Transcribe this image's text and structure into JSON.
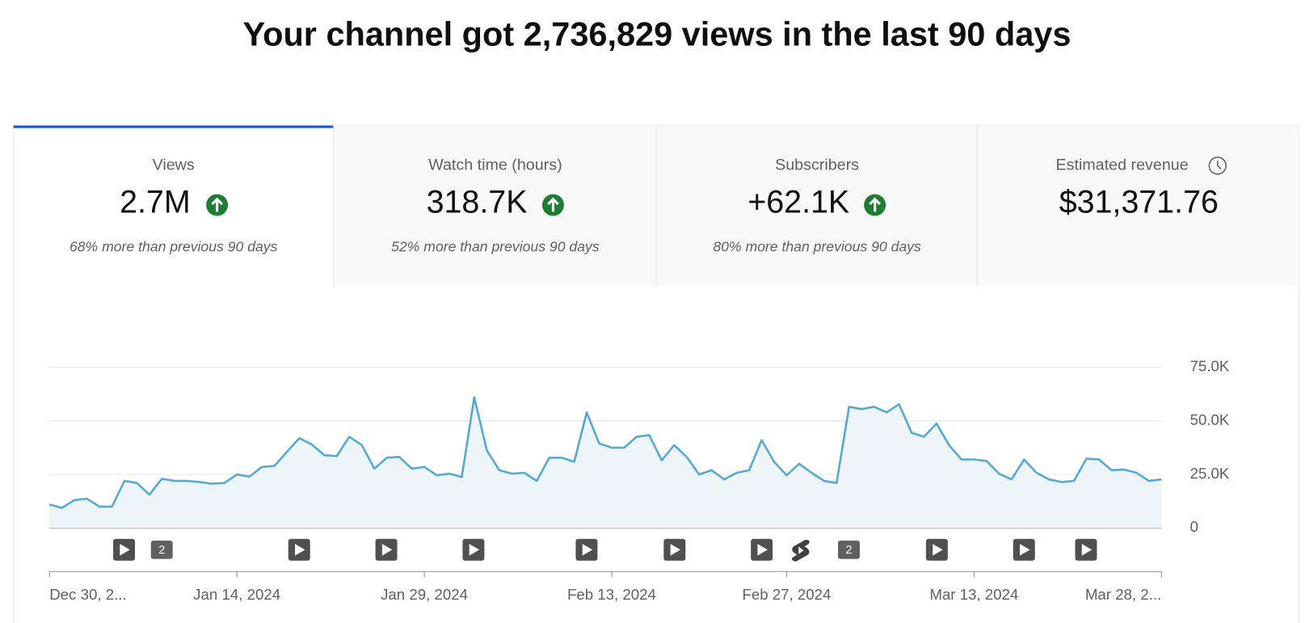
{
  "header": {
    "title": "Your channel got 2,736,829 views in the last 90 days"
  },
  "tabs": [
    {
      "label": "Views",
      "value": "2.7M",
      "change": "68% more than previous 90 days"
    },
    {
      "label": "Watch time (hours)",
      "value": "318.7K",
      "change": "52% more than previous 90 days"
    },
    {
      "label": "Subscribers",
      "value": "+62.1K",
      "change": "80% more than previous 90 days"
    },
    {
      "label": "Estimated revenue",
      "value": "$31,371.76"
    }
  ],
  "chart_data": {
    "type": "line",
    "color": "#55a9d4",
    "fill": "#eef5f9",
    "grid": true,
    "values": [
      11000,
      9400,
      13000,
      13700,
      10000,
      10000,
      22000,
      21000,
      15600,
      23000,
      22000,
      22000,
      21500,
      20700,
      21000,
      25000,
      24000,
      28500,
      29000,
      35500,
      42000,
      39000,
      34000,
      33600,
      42600,
      38700,
      27700,
      32800,
      33200,
      27700,
      28500,
      24600,
      25400,
      23800,
      61000,
      36300,
      27000,
      25400,
      25800,
      22000,
      32800,
      32800,
      30900,
      54000,
      39500,
      37500,
      37500,
      42600,
      43400,
      31600,
      38700,
      33200,
      25000,
      27000,
      22700,
      25800,
      27000,
      41000,
      30900,
      24600,
      30000,
      25800,
      22000,
      21000,
      56600,
      55500,
      56600,
      54000,
      57800,
      44500,
      42600,
      48800,
      38700,
      32000,
      32000,
      31300,
      25400,
      22700,
      32000,
      25800,
      22700,
      21500,
      22000,
      32400,
      32000,
      27000,
      27300,
      25800,
      22000,
      22700
    ],
    "xlim": [
      0,
      89
    ],
    "xticks": [
      {
        "value": 0,
        "label": "Dec 30, 2..."
      },
      {
        "value": 15,
        "label": "Jan 14, 2024"
      },
      {
        "value": 30,
        "label": "Jan 29, 2024"
      },
      {
        "value": 45,
        "label": "Feb 13, 2024"
      },
      {
        "value": 59,
        "label": "Feb 27, 2024"
      },
      {
        "value": 74,
        "label": "Mar 13, 2024"
      },
      {
        "value": 89,
        "label": "Mar 28, 2..."
      }
    ],
    "ylim": [
      0,
      75000
    ],
    "yticks": [
      0,
      {
        "value": 25000,
        "label": "25.0K"
      },
      {
        "value": 50000,
        "label": "50.0K"
      },
      {
        "value": 75000,
        "label": "75.0K"
      }
    ],
    "event_badges": [
      "2",
      "2"
    ]
  }
}
